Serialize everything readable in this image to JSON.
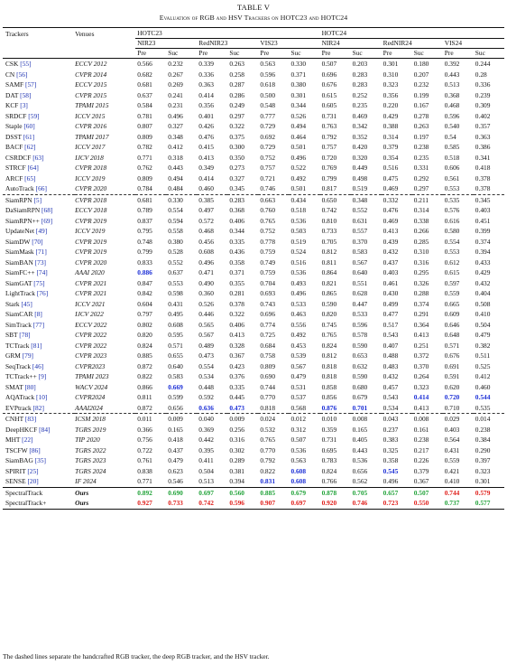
{
  "table_label": "TABLE V",
  "caption": "Evaluation of RGB and HSV Trackers on HOTC23 and HOTC24",
  "headers": {
    "trackers": "Trackers",
    "venues": "Venues",
    "hotc23": "HOTC23",
    "hotc24": "HOTC24",
    "datasets": [
      "NIR23",
      "RedNIR23",
      "VIS23",
      "NIR24",
      "RedNIR24",
      "VIS24"
    ],
    "pre": "Pre",
    "suc": "Suc"
  },
  "groups": [
    [
      {
        "name": "CSK",
        "ref": "[55]",
        "venue": "ECCV 2012",
        "v": [
          "0.566",
          "0.232",
          "0.339",
          "0.263",
          "0.563",
          "0.330",
          "0.507",
          "0.203",
          "0.301",
          "0.180",
          "0.392",
          "0.244"
        ]
      },
      {
        "name": "CN",
        "ref": "[56]",
        "venue": "CVPR 2014",
        "v": [
          "0.682",
          "0.267",
          "0.336",
          "0.258",
          "0.596",
          "0.371",
          "0.696",
          "0.283",
          "0.310",
          "0.207",
          "0.443",
          "0.28"
        ]
      },
      {
        "name": "SAMF",
        "ref": "[57]",
        "venue": "ECCV 2015",
        "v": [
          "0.681",
          "0.269",
          "0.363",
          "0.287",
          "0.618",
          "0.380",
          "0.676",
          "0.283",
          "0.323",
          "0.232",
          "0.513",
          "0.336"
        ]
      },
      {
        "name": "DAT",
        "ref": "[58]",
        "venue": "CVPR 2015",
        "v": [
          "0.637",
          "0.241",
          "0.414",
          "0.286",
          "0.500",
          "0.301",
          "0.615",
          "0.252",
          "0.356",
          "0.199",
          "0.368",
          "0.239"
        ]
      },
      {
        "name": "KCF",
        "ref": "[3]",
        "venue": "TPAMI 2015",
        "v": [
          "0.584",
          "0.231",
          "0.356",
          "0.249",
          "0.548",
          "0.344",
          "0.605",
          "0.235",
          "0.220",
          "0.167",
          "0.468",
          "0.309"
        ]
      },
      {
        "name": "SRDCF",
        "ref": "[59]",
        "venue": "ICCV 2015",
        "v": [
          "0.781",
          "0.496",
          "0.401",
          "0.297",
          "0.777",
          "0.526",
          "0.731",
          "0.469",
          "0.429",
          "0.278",
          "0.596",
          "0.402"
        ]
      },
      {
        "name": "Staple",
        "ref": "[60]",
        "venue": "CVPR 2016",
        "v": [
          "0.807",
          "0.327",
          "0.426",
          "0.322",
          "0.729",
          "0.494",
          "0.763",
          "0.342",
          "0.388",
          "0.263",
          "0.540",
          "0.357"
        ]
      },
      {
        "name": "DSST",
        "ref": "[61]",
        "venue": "TPAMI 2017",
        "v": [
          "0.809",
          "0.348",
          "0.476",
          "0.375",
          "0.692",
          "0.464",
          "0.792",
          "0.352",
          "0.314",
          "0.197",
          "0.54",
          "0.363"
        ]
      },
      {
        "name": "BACF",
        "ref": "[62]",
        "venue": "ICCV 2017",
        "v": [
          "0.782",
          "0.412",
          "0.415",
          "0.300",
          "0.729",
          "0.501",
          "0.757",
          "0.420",
          "0.379",
          "0.238",
          "0.585",
          "0.386"
        ]
      },
      {
        "name": "CSRDCF",
        "ref": "[63]",
        "venue": "IJCV 2018",
        "v": [
          "0.771",
          "0.318",
          "0.413",
          "0.350",
          "0.752",
          "0.496",
          "0.720",
          "0.320",
          "0.354",
          "0.235",
          "0.518",
          "0.341"
        ]
      },
      {
        "name": "STRCF",
        "ref": "[64]",
        "venue": "CVPR 2018",
        "v": [
          "0.762",
          "0.443",
          "0.349",
          "0.273",
          "0.757",
          "0.522",
          "0.769",
          "0.449",
          "0.516",
          "0.331",
          "0.606",
          "0.418"
        ]
      },
      {
        "name": "ARCF",
        "ref": "[65]",
        "venue": "ICCV 2019",
        "v": [
          "0.809",
          "0.494",
          "0.414",
          "0.327",
          "0.721",
          "0.492",
          "0.799",
          "0.498",
          "0.475",
          "0.292",
          "0.561",
          "0.378"
        ]
      },
      {
        "name": "AutoTrack",
        "ref": "[66]",
        "venue": "CVPR 2020",
        "v": [
          "0.784",
          "0.484",
          "0.460",
          "0.345",
          "0.746",
          "0.501",
          "0.817",
          "0.519",
          "0.469",
          "0.297",
          "0.553",
          "0.378"
        ]
      }
    ],
    [
      {
        "name": "SiamRPN",
        "ref": "[5]",
        "venue": "CVPR 2018",
        "v": [
          "0.681",
          "0.330",
          "0.385",
          "0.283",
          "0.663",
          "0.434",
          "0.650",
          "0.348",
          "0.332",
          "0.211",
          "0.535",
          "0.345"
        ]
      },
      {
        "name": "DaSiamRPN",
        "ref": "[68]",
        "venue": "ECCV 2018",
        "v": [
          "0.789",
          "0.554",
          "0.497",
          "0.368",
          "0.760",
          "0.518",
          "0.742",
          "0.552",
          "0.476",
          "0.314",
          "0.576",
          "0.403"
        ]
      },
      {
        "name": "SiamRPN++",
        "ref": "[69]",
        "venue": "CVPR 2019",
        "v": [
          "0.837",
          "0.594",
          "0.572",
          "0.406",
          "0.765",
          "0.536",
          "0.810",
          "0.631",
          "0.469",
          "0.338",
          "0.616",
          "0.451"
        ]
      },
      {
        "name": "UpdateNet",
        "ref": "[49]",
        "venue": "ICCV 2019",
        "v": [
          "0.795",
          "0.558",
          "0.468",
          "0.344",
          "0.752",
          "0.503",
          "0.733",
          "0.557",
          "0.413",
          "0.266",
          "0.580",
          "0.399"
        ]
      },
      {
        "name": "SiamDW",
        "ref": "[70]",
        "venue": "CVPR 2019",
        "v": [
          "0.748",
          "0.380",
          "0.456",
          "0.335",
          "0.778",
          "0.519",
          "0.705",
          "0.370",
          "0.439",
          "0.285",
          "0.554",
          "0.374"
        ]
      },
      {
        "name": "SiamMask",
        "ref": "[71]",
        "venue": "CVPR 2019",
        "v": [
          "0.799",
          "0.528",
          "0.608",
          "0.436",
          "0.759",
          "0.524",
          "0.812",
          "0.583",
          "0.432",
          "0.310",
          "0.553",
          "0.394"
        ]
      },
      {
        "name": "SiamBAN",
        "ref": "[73]",
        "venue": "CVPR 2020",
        "v": [
          "0.833",
          "0.552",
          "0.496",
          "0.358",
          "0.749",
          "0.516",
          "0.811",
          "0.567",
          "0.437",
          "0.316",
          "0.612",
          "0.433"
        ]
      },
      {
        "name": "SiamFC++",
        "ref": "[74]",
        "venue": "AAAI 2020",
        "v": [
          "0.886",
          "0.637",
          "0.471",
          "0.371",
          "0.759",
          "0.536",
          "0.864",
          "0.640",
          "0.403",
          "0.295",
          "0.615",
          "0.429"
        ]
      },
      {
        "name": "SiamGAT",
        "ref": "[75]",
        "venue": "CVPR 2021",
        "v": [
          "0.847",
          "0.553",
          "0.490",
          "0.355",
          "0.704",
          "0.493",
          "0.821",
          "0.551",
          "0.461",
          "0.326",
          "0.597",
          "0.432"
        ]
      },
      {
        "name": "LightTrack",
        "ref": "[76]",
        "venue": "CVPR 2021",
        "v": [
          "0.842",
          "0.598",
          "0.360",
          "0.281",
          "0.693",
          "0.496",
          "0.865",
          "0.628",
          "0.430",
          "0.288",
          "0.559",
          "0.404"
        ]
      },
      {
        "name": "Stark",
        "ref": "[45]",
        "venue": "ICCV 2021",
        "v": [
          "0.604",
          "0.431",
          "0.526",
          "0.378",
          "0.743",
          "0.533",
          "0.590",
          "0.447",
          "0.499",
          "0.374",
          "0.665",
          "0.508"
        ]
      },
      {
        "name": "SiamCAR",
        "ref": "[8]",
        "venue": "IJCV 2022",
        "v": [
          "0.797",
          "0.495",
          "0.446",
          "0.322",
          "0.696",
          "0.463",
          "0.820",
          "0.533",
          "0.477",
          "0.291",
          "0.609",
          "0.410"
        ]
      },
      {
        "name": "SimTrack",
        "ref": "[77]",
        "venue": "ECCV 2022",
        "v": [
          "0.802",
          "0.608",
          "0.565",
          "0.406",
          "0.774",
          "0.556",
          "0.745",
          "0.596",
          "0.517",
          "0.364",
          "0.646",
          "0.504"
        ]
      },
      {
        "name": "SBT",
        "ref": "[78]",
        "venue": "CVPR 2022",
        "v": [
          "0.820",
          "0.595",
          "0.567",
          "0.413",
          "0.725",
          "0.492",
          "0.765",
          "0.578",
          "0.543",
          "0.413",
          "0.648",
          "0.479"
        ]
      },
      {
        "name": "TCTrack",
        "ref": "[81]",
        "venue": "CVPR 2022",
        "v": [
          "0.824",
          "0.571",
          "0.489",
          "0.328",
          "0.684",
          "0.453",
          "0.824",
          "0.590",
          "0.407",
          "0.251",
          "0.571",
          "0.382"
        ]
      },
      {
        "name": "GRM",
        "ref": "[79]",
        "venue": "CVPR 2023",
        "v": [
          "0.885",
          "0.655",
          "0.473",
          "0.367",
          "0.758",
          "0.539",
          "0.812",
          "0.653",
          "0.488",
          "0.372",
          "0.676",
          "0.511"
        ]
      },
      {
        "name": "SeqTrack",
        "ref": "[46]",
        "venue": "CVPR2023",
        "v": [
          "0.872",
          "0.640",
          "0.554",
          "0.423",
          "0.809",
          "0.567",
          "0.818",
          "0.632",
          "0.483",
          "0.370",
          "0.691",
          "0.525"
        ]
      },
      {
        "name": "TCTrack++",
        "ref": "[9]",
        "venue": "TPAMI 2023",
        "v": [
          "0.822",
          "0.583",
          "0.534",
          "0.376",
          "0.690",
          "0.479",
          "0.818",
          "0.590",
          "0.432",
          "0.264",
          "0.591",
          "0.412"
        ]
      },
      {
        "name": "SMAT",
        "ref": "[80]",
        "venue": "WACV 2024",
        "v": [
          "0.866",
          "0.669",
          "0.448",
          "0.335",
          "0.744",
          "0.531",
          "0.858",
          "0.680",
          "0.457",
          "0.323",
          "0.620",
          "0.460"
        ]
      },
      {
        "name": "AQATrack",
        "ref": "[10]",
        "venue": "CVPR2024",
        "v": [
          "0.811",
          "0.599",
          "0.592",
          "0.445",
          "0.770",
          "0.537",
          "0.856",
          "0.679",
          "0.543",
          "0.414",
          "0.720",
          "0.544"
        ]
      },
      {
        "name": "EVPtrack",
        "ref": "[82]",
        "venue": "AAAI2024",
        "v": [
          "0.872",
          "0.656",
          "0.636",
          "0.473",
          "0.818",
          "0.568",
          "0.876",
          "0.701",
          "0.534",
          "0.413",
          "0.710",
          "0.535"
        ]
      }
    ],
    [
      {
        "name": "CNHT",
        "ref": "[83]",
        "venue": "ICSM 2018",
        "v": [
          "0.011",
          "0.009",
          "0.040",
          "0.009",
          "0.024",
          "0.012",
          "0.010",
          "0.008",
          "0.043",
          "0.008",
          "0.029",
          "0.014"
        ]
      },
      {
        "name": "DeepHKCF",
        "ref": "[84]",
        "venue": "TGRS 2019",
        "v": [
          "0.366",
          "0.165",
          "0.369",
          "0.256",
          "0.532",
          "0.312",
          "0.359",
          "0.165",
          "0.237",
          "0.161",
          "0.403",
          "0.238"
        ]
      },
      {
        "name": "MHT",
        "ref": "[22]",
        "venue": "TIP 2020",
        "v": [
          "0.756",
          "0.418",
          "0.442",
          "0.316",
          "0.765",
          "0.507",
          "0.731",
          "0.405",
          "0.383",
          "0.238",
          "0.564",
          "0.384"
        ]
      },
      {
        "name": "TSCFW",
        "ref": "[86]",
        "venue": "TGRS 2022",
        "v": [
          "0.722",
          "0.437",
          "0.395",
          "0.302",
          "0.770",
          "0.536",
          "0.695",
          "0.443",
          "0.325",
          "0.217",
          "0.431",
          "0.290"
        ]
      },
      {
        "name": "SiamBAG",
        "ref": "[35]",
        "venue": "TGRS 2023",
        "v": [
          "0.761",
          "0.479",
          "0.411",
          "0.289",
          "0.792",
          "0.563",
          "0.783",
          "0.536",
          "0.358",
          "0.226",
          "0.559",
          "0.397"
        ]
      },
      {
        "name": "SPIRIT",
        "ref": "[25]",
        "venue": "TGRS 2024",
        "v": [
          "0.838",
          "0.623",
          "0.504",
          "0.381",
          "0.822",
          "0.608",
          "0.824",
          "0.656",
          "0.545",
          "0.379",
          "0.421",
          "0.323"
        ]
      },
      {
        "name": "SENSE",
        "ref": "[20]",
        "venue": "IF 2024",
        "v": [
          "0.771",
          "0.546",
          "0.513",
          "0.394",
          "0.831",
          "0.608",
          "0.766",
          "0.562",
          "0.496",
          "0.367",
          "0.410",
          "0.301"
        ]
      }
    ],
    [
      {
        "name": "SpectralTrack",
        "ref": "",
        "venue": "Ours",
        "v": [
          "0.892",
          "0.690",
          "0.697",
          "0.560",
          "0.885",
          "0.679",
          "0.878",
          "0.705",
          "0.657",
          "0.507",
          "0.744",
          "0.579"
        ]
      },
      {
        "name": "SpectralTrack+",
        "ref": "",
        "venue": "Ours",
        "v": [
          "0.927",
          "0.733",
          "0.742",
          "0.596",
          "0.907",
          "0.697",
          "0.920",
          "0.746",
          "0.723",
          "0.550",
          "0.737",
          "0.577"
        ]
      }
    ]
  ],
  "highlights": {
    "colors": {
      "red": "#e0201c",
      "green": "#22a33a",
      "blue": "#1c2fd6"
    },
    "cells": [
      {
        "g": 1,
        "r": 7,
        "c": 0,
        "k": "blue"
      },
      {
        "g": 1,
        "r": 18,
        "c": 1,
        "k": "blue"
      },
      {
        "g": 1,
        "r": 20,
        "c": 2,
        "k": "blue"
      },
      {
        "g": 1,
        "r": 20,
        "c": 3,
        "k": "blue"
      },
      {
        "g": 1,
        "r": 20,
        "c": 6,
        "k": "blue"
      },
      {
        "g": 1,
        "r": 20,
        "c": 7,
        "k": "blue"
      },
      {
        "g": 1,
        "r": 19,
        "c": 9,
        "k": "blue"
      },
      {
        "g": 1,
        "r": 19,
        "c": 10,
        "k": "blue"
      },
      {
        "g": 1,
        "r": 19,
        "c": 11,
        "k": "blue"
      },
      {
        "g": 2,
        "r": 6,
        "c": 4,
        "k": "blue"
      },
      {
        "g": 2,
        "r": 5,
        "c": 5,
        "k": "blue"
      },
      {
        "g": 2,
        "r": 6,
        "c": 5,
        "k": "blue"
      },
      {
        "g": 2,
        "r": 5,
        "c": 8,
        "k": "blue"
      },
      {
        "g": 3,
        "r": 0,
        "c": 0,
        "k": "green"
      },
      {
        "g": 3,
        "r": 0,
        "c": 1,
        "k": "green"
      },
      {
        "g": 3,
        "r": 0,
        "c": 2,
        "k": "green"
      },
      {
        "g": 3,
        "r": 0,
        "c": 3,
        "k": "green"
      },
      {
        "g": 3,
        "r": 0,
        "c": 4,
        "k": "green"
      },
      {
        "g": 3,
        "r": 0,
        "c": 5,
        "k": "green"
      },
      {
        "g": 3,
        "r": 0,
        "c": 6,
        "k": "green"
      },
      {
        "g": 3,
        "r": 0,
        "c": 7,
        "k": "green"
      },
      {
        "g": 3,
        "r": 0,
        "c": 8,
        "k": "green"
      },
      {
        "g": 3,
        "r": 0,
        "c": 9,
        "k": "green"
      },
      {
        "g": 3,
        "r": 0,
        "c": 10,
        "k": "red"
      },
      {
        "g": 3,
        "r": 0,
        "c": 11,
        "k": "red"
      },
      {
        "g": 3,
        "r": 1,
        "c": 0,
        "k": "red"
      },
      {
        "g": 3,
        "r": 1,
        "c": 1,
        "k": "red"
      },
      {
        "g": 3,
        "r": 1,
        "c": 2,
        "k": "red"
      },
      {
        "g": 3,
        "r": 1,
        "c": 3,
        "k": "red"
      },
      {
        "g": 3,
        "r": 1,
        "c": 4,
        "k": "red"
      },
      {
        "g": 3,
        "r": 1,
        "c": 5,
        "k": "red"
      },
      {
        "g": 3,
        "r": 1,
        "c": 6,
        "k": "red"
      },
      {
        "g": 3,
        "r": 1,
        "c": 7,
        "k": "red"
      },
      {
        "g": 3,
        "r": 1,
        "c": 8,
        "k": "red"
      },
      {
        "g": 3,
        "r": 1,
        "c": 9,
        "k": "red"
      },
      {
        "g": 3,
        "r": 1,
        "c": 10,
        "k": "green"
      },
      {
        "g": 3,
        "r": 1,
        "c": 11,
        "k": "green"
      }
    ]
  },
  "note": "The dashed lines separate the handcrafted RGB tracker, the deep RGB tracker, and the HSV tracker."
}
